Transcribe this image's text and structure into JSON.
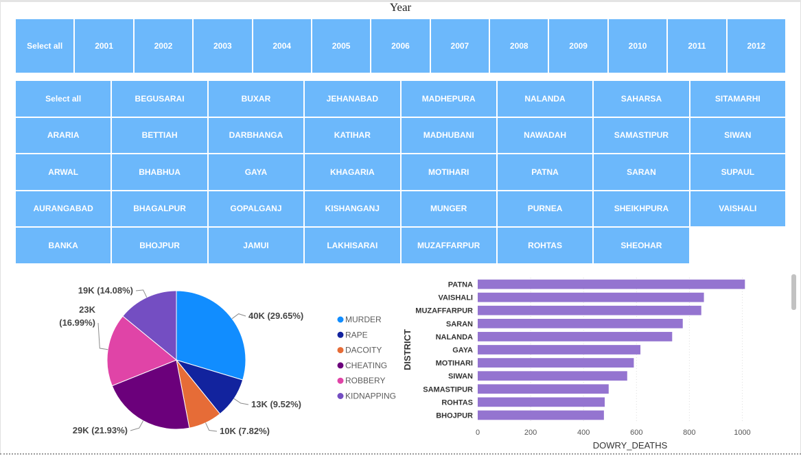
{
  "year_slicer": {
    "title": "Year",
    "items": [
      "Select all",
      "2001",
      "2002",
      "2003",
      "2004",
      "2005",
      "2006",
      "2007",
      "2008",
      "2009",
      "2010",
      "2011",
      "2012"
    ]
  },
  "district_slicer": {
    "items": [
      "Select all",
      "BEGUSARAI",
      "BUXAR",
      "JEHANABAD",
      "MADHEPURA",
      "NALANDA",
      "SAHARSA",
      "SITAMARHI",
      "ARARIA",
      "BETTIAH",
      "DARBHANGA",
      "KATIHAR",
      "MADHUBANI",
      "NAWADAH",
      "SAMASTIPUR",
      "SIWAN",
      "ARWAL",
      "BHABHUA",
      "GAYA",
      "KHAGARIA",
      "MOTIHARI",
      "PATNA",
      "SARAN",
      "SUPAUL",
      "AURANGABAD",
      "BHAGALPUR",
      "GOPALGANJ",
      "KISHANGANJ",
      "MUNGER",
      "PURNEA",
      "SHEIKHPURA",
      "VAISHALI",
      "BANKA",
      "BHOJPUR",
      "JAMUI",
      "LAKHISARAI",
      "MUZAFFARPUR",
      "ROHTAS",
      "SHEOHAR"
    ]
  },
  "chart_data": [
    {
      "type": "pie",
      "slices": [
        {
          "name": "MURDER",
          "value": 40,
          "label": "40K (29.65%)",
          "color": "#118dff"
        },
        {
          "name": "RAPE",
          "value": 13,
          "label": "13K (9.52%)",
          "color": "#12239e"
        },
        {
          "name": "DACOITY",
          "value": 10,
          "label": "10K (7.82%)",
          "color": "#e66c37"
        },
        {
          "name": "CHEATING",
          "value": 29,
          "label": "29K (21.93%)",
          "color": "#6b007b"
        },
        {
          "name": "ROBBERY",
          "value": 23,
          "label": [
            "23K",
            "(16.99%)"
          ],
          "color": "#e044a7"
        },
        {
          "name": "KIDNAPPING",
          "value": 19,
          "label": "19K (14.08%)",
          "color": "#744ec2"
        }
      ],
      "percentages": [
        29.65,
        9.52,
        7.82,
        21.93,
        16.99,
        14.08
      ],
      "legend": [
        "MURDER",
        "RAPE",
        "DACOITY",
        "CHEATING",
        "ROBBERY",
        "KIDNAPPING"
      ]
    },
    {
      "type": "bar",
      "orientation": "horizontal",
      "categories": [
        "PATNA",
        "VAISHALI",
        "MUZAFFARPUR",
        "SARAN",
        "NALANDA",
        "GAYA",
        "MOTIHARI",
        "SIWAN",
        "SAMASTIPUR",
        "ROHTAS",
        "BHOJPUR"
      ],
      "values": [
        1010,
        855,
        845,
        775,
        735,
        615,
        590,
        565,
        495,
        480,
        477
      ],
      "xlabel": "DOWRY_DEATHS",
      "ylabel": "DISTRICT",
      "xticks": [
        0,
        200,
        400,
        600,
        800,
        1000
      ],
      "xlim": [
        0,
        1100
      ],
      "bar_color": "#9474d0",
      "grid": true
    }
  ]
}
